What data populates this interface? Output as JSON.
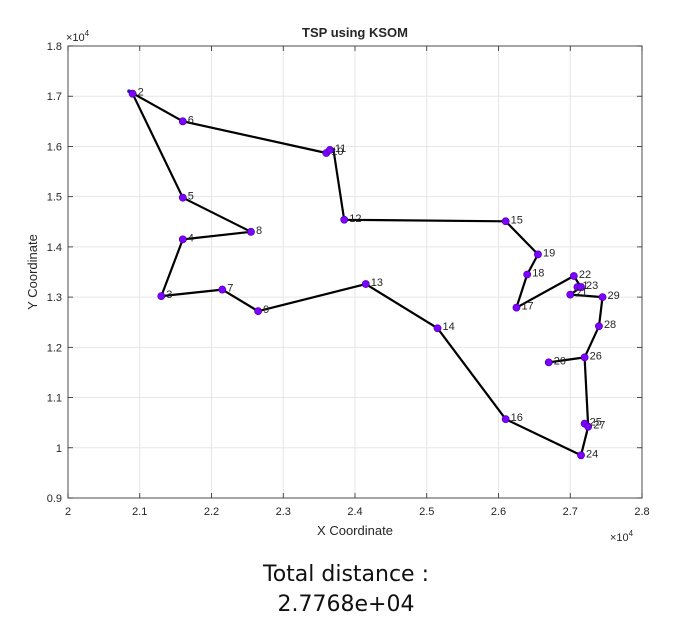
{
  "caption": {
    "label": "Total distance :",
    "value": "2.7768e+04"
  },
  "chart_data": {
    "type": "scatter",
    "title": "TSP using KSOM",
    "xlabel": "X Coordinate",
    "ylabel": "Y Coordinate",
    "xlim": [
      20000,
      28000
    ],
    "ylim": [
      9000,
      18000
    ],
    "x_multiplier_label": "×10",
    "y_multiplier_label": "×10",
    "exponent": "4",
    "x_ticks": [
      20000,
      21000,
      22000,
      23000,
      24000,
      25000,
      26000,
      27000,
      28000
    ],
    "x_tick_labels": [
      "2",
      "2.1",
      "2.2",
      "2.3",
      "2.4",
      "2.5",
      "2.6",
      "2.7",
      "2.8"
    ],
    "y_ticks": [
      9000,
      10000,
      11000,
      12000,
      13000,
      14000,
      15000,
      16000,
      17000,
      18000
    ],
    "y_tick_labels": [
      "0.9",
      "1",
      "1.1",
      "1.2",
      "1.3",
      "1.4",
      "1.5",
      "1.6",
      "1.7",
      "1.8"
    ],
    "grid": true,
    "colors": {
      "route": "#000000",
      "city": "#7f00ff",
      "node": "#1a1ab8"
    },
    "cities": [
      {
        "label": "1",
        "x": 27100,
        "y": 13200
      },
      {
        "label": "2",
        "x": 20900,
        "y": 17050
      },
      {
        "label": "3",
        "x": 21300,
        "y": 13020
      },
      {
        "label": "4",
        "x": 21600,
        "y": 14150
      },
      {
        "label": "5",
        "x": 21600,
        "y": 14980
      },
      {
        "label": "6",
        "x": 21600,
        "y": 16500
      },
      {
        "label": "7",
        "x": 22150,
        "y": 13150
      },
      {
        "label": "8",
        "x": 22550,
        "y": 14300
      },
      {
        "label": "9",
        "x": 22650,
        "y": 12720
      },
      {
        "label": "10",
        "x": 23600,
        "y": 15870
      },
      {
        "label": "11",
        "x": 23650,
        "y": 15930
      },
      {
        "label": "12",
        "x": 23850,
        "y": 14540
      },
      {
        "label": "13",
        "x": 24150,
        "y": 13260
      },
      {
        "label": "14",
        "x": 25150,
        "y": 12380
      },
      {
        "label": "15",
        "x": 26100,
        "y": 14510
      },
      {
        "label": "16",
        "x": 26100,
        "y": 10570
      },
      {
        "label": "17",
        "x": 26250,
        "y": 12790
      },
      {
        "label": "18",
        "x": 26400,
        "y": 13450
      },
      {
        "label": "19",
        "x": 26550,
        "y": 13850
      },
      {
        "label": "20",
        "x": 26700,
        "y": 11700
      },
      {
        "label": "21",
        "x": 27000,
        "y": 13050
      },
      {
        "label": "22",
        "x": 27050,
        "y": 13420
      },
      {
        "label": "23",
        "x": 27150,
        "y": 13200
      },
      {
        "label": "24",
        "x": 27150,
        "y": 9850
      },
      {
        "label": "25",
        "x": 27200,
        "y": 10480
      },
      {
        "label": "26",
        "x": 27200,
        "y": 11800
      },
      {
        "label": "27",
        "x": 27250,
        "y": 10420
      },
      {
        "label": "28",
        "x": 27400,
        "y": 12420
      },
      {
        "label": "29",
        "x": 27450,
        "y": 13000
      }
    ],
    "route": [
      [
        20850,
        17100
      ],
      [
        21600,
        16500
      ],
      [
        23600,
        15870
      ],
      [
        23700,
        15930
      ],
      [
        23850,
        14540
      ],
      [
        26100,
        14510
      ],
      [
        26550,
        13850
      ],
      [
        26400,
        13450
      ],
      [
        26250,
        12790
      ],
      [
        27050,
        13420
      ],
      [
        27150,
        13200
      ],
      [
        27000,
        13050
      ],
      [
        27450,
        13000
      ],
      [
        27400,
        12420
      ],
      [
        27200,
        11800
      ],
      [
        26700,
        11700
      ],
      [
        27200,
        11800
      ],
      [
        27250,
        10420
      ],
      [
        27150,
        9850
      ],
      [
        26100,
        10570
      ],
      [
        25150,
        12380
      ],
      [
        24150,
        13260
      ],
      [
        22650,
        12720
      ],
      [
        22150,
        13150
      ],
      [
        21300,
        13020
      ],
      [
        21600,
        14150
      ],
      [
        22550,
        14300
      ],
      [
        21600,
        14980
      ],
      [
        20900,
        17050
      ]
    ]
  }
}
